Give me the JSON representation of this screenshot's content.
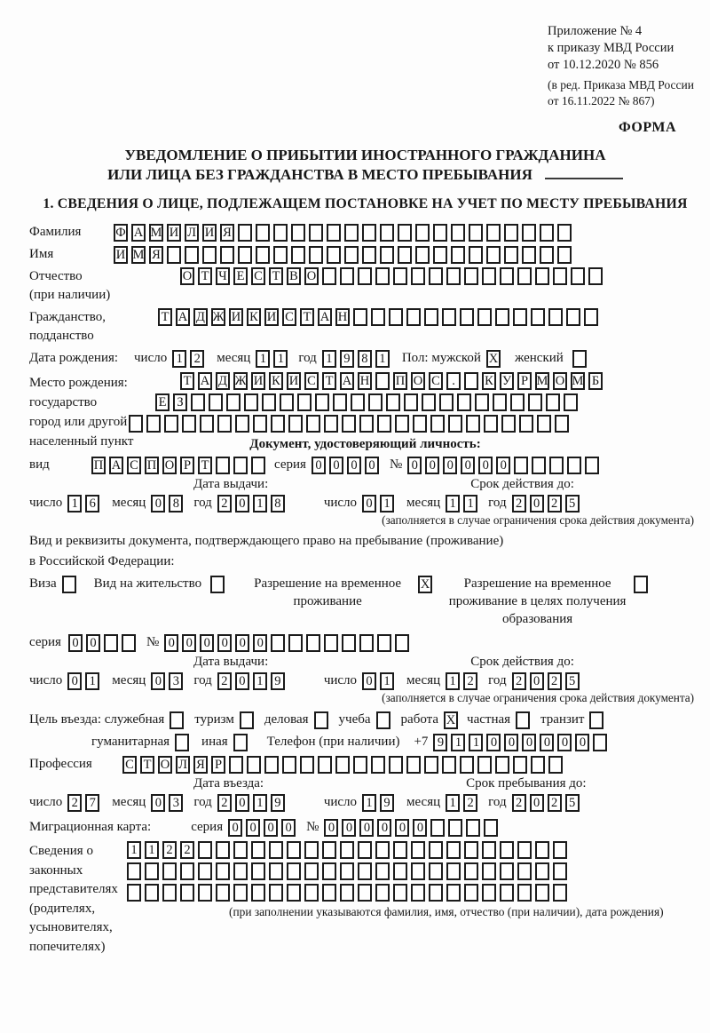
{
  "header": {
    "appendix_line1": "Приложение № 4",
    "appendix_line2": "к приказу МВД России",
    "appendix_line3": "от 10.12.2020 № 856",
    "edition_line1": "(в ред. Приказа МВД России",
    "edition_line2": "от 16.11.2022 № 867)",
    "form_label": "ФОРМА"
  },
  "title": {
    "line1": "УВЕДОМЛЕНИЕ О ПРИБЫТИИ ИНОСТРАННОГО ГРАЖДАНИНА",
    "line2": "ИЛИ ЛИЦА БЕЗ ГРАЖДАНСТВА В МЕСТО ПРЕБЫВАНИЯ"
  },
  "section1_heading": "1. СВЕДЕНИЯ О ЛИЦЕ, ПОДЛЕЖАЩЕМ ПОСТАНОВКЕ НА УЧЕТ ПО МЕСТУ ПРЕБЫВАНИЯ",
  "labels": {
    "surname": "Фамилия",
    "name": "Имя",
    "patronymic": "Отчество",
    "patronymic_note": "(при наличии)",
    "citizenship1": "Гражданство,",
    "citizenship2": "подданство",
    "birth_date": "Дата рождения:",
    "day": "число",
    "month": "месяц",
    "year": "год",
    "sex_male": "Пол: мужской",
    "sex_female": "женский",
    "birth_place": "Место рождения:",
    "state": "государство",
    "city1": "город или другой",
    "city2": "населенный пункт",
    "identity_doc_heading": "Документ, удостоверяющий личность:",
    "doc_type": "вид",
    "series": "серия",
    "number": "№",
    "issue_date": "Дата выдачи:",
    "valid_until": "Срок действия до:",
    "validity_note": "(заполняется в случае ограничения срока действия документа)",
    "residence_doc_line1": "Вид и реквизиты документа, подтверждающего право на пребывание (проживание)",
    "residence_doc_line2": "в Российской Федерации:",
    "visa": "Виза",
    "residence_permit": "Вид на жительство",
    "temp_residence": "Разрешение на временное проживание",
    "temp_residence_edu": "Разрешение на временное проживание в целях получения образования",
    "entry_purpose": "Цель въезда: служебная",
    "tourism": "туризм",
    "business": "деловая",
    "study": "учеба",
    "work": "работа",
    "private": "частная",
    "transit": "транзит",
    "humanitarian": "гуманитарная",
    "other": "иная",
    "phone": "Телефон (при наличии)",
    "phone_prefix": "+7",
    "profession": "Профессия",
    "entry_date": "Дата въезда:",
    "stay_until": "Срок пребывания до:",
    "migration_card": "Миграционная карта:",
    "guardians_l1": "Сведения о",
    "guardians_l2": "законных",
    "guardians_l3": "представителях",
    "guardians_l4": "(родителях,",
    "guardians_l5": "усыновителях,",
    "guardians_l6": "попечителях)",
    "guardians_note": "(при заполнении указываются фамилия, имя, отчество (при наличии), дата рождения)"
  },
  "boxes": {
    "surname": {
      "value": "ФАМИЛИЯ",
      "cells": 26
    },
    "name": {
      "value": "ИМЯ",
      "cells": 26
    },
    "patronymic": {
      "value": "ОТЧЕСТВО",
      "cells": 24
    },
    "citizenship": {
      "value": "ТАДЖИКИСТАН",
      "cells": 25
    },
    "birth_day": {
      "value": "12",
      "cells": 2
    },
    "birth_month": {
      "value": "11",
      "cells": 2
    },
    "birth_year": {
      "value": "1981",
      "cells": 4
    },
    "sex_male": {
      "value": "X",
      "cells": 1
    },
    "sex_female": {
      "value": "",
      "cells": 1
    },
    "birth_place_row1": {
      "value": "ТАДЖИКИСТАН ПОС. КУРМОМБ",
      "cells": 24
    },
    "birth_place_row2": {
      "value": "ЕЗ",
      "cells": 24
    },
    "birth_place_row3": {
      "value": "",
      "cells": 25
    },
    "doc_type": {
      "value": "ПАСПОРТ",
      "cells": 10
    },
    "doc_series": {
      "value": "0000",
      "cells": 4
    },
    "doc_number": {
      "value": "000000",
      "cells": 11
    },
    "doc_issue_day": {
      "value": "16",
      "cells": 2
    },
    "doc_issue_month": {
      "value": "08",
      "cells": 2
    },
    "doc_issue_year": {
      "value": "2018",
      "cells": 4
    },
    "doc_valid_day": {
      "value": "01",
      "cells": 2
    },
    "doc_valid_month": {
      "value": "11",
      "cells": 2
    },
    "doc_valid_year": {
      "value": "2025",
      "cells": 4
    },
    "visa_checkbox": {
      "value": "",
      "cells": 1
    },
    "residence_permit_checkbox": {
      "value": "",
      "cells": 1
    },
    "temp_residence_checkbox": {
      "value": "X",
      "cells": 1
    },
    "temp_residence_edu_checkbox": {
      "value": "",
      "cells": 1
    },
    "permit_series": {
      "value": "00",
      "cells": 4
    },
    "permit_number": {
      "value": "000000",
      "cells": 14
    },
    "permit_issue_day": {
      "value": "01",
      "cells": 2
    },
    "permit_issue_month": {
      "value": "03",
      "cells": 2
    },
    "permit_issue_year": {
      "value": "2019",
      "cells": 4
    },
    "permit_valid_day": {
      "value": "01",
      "cells": 2
    },
    "permit_valid_month": {
      "value": "12",
      "cells": 2
    },
    "permit_valid_year": {
      "value": "2025",
      "cells": 4
    },
    "purpose_official": {
      "value": "",
      "cells": 1
    },
    "purpose_tourism": {
      "value": "",
      "cells": 1
    },
    "purpose_business": {
      "value": "",
      "cells": 1
    },
    "purpose_study": {
      "value": "",
      "cells": 1
    },
    "purpose_work": {
      "value": "X",
      "cells": 1
    },
    "purpose_private": {
      "value": "",
      "cells": 1
    },
    "purpose_transit": {
      "value": "",
      "cells": 1
    },
    "purpose_humanitarian": {
      "value": "",
      "cells": 1
    },
    "purpose_other": {
      "value": "",
      "cells": 1
    },
    "phone_number": {
      "value": "911000000",
      "cells": 10
    },
    "profession": {
      "value": "СТОЛЯР",
      "cells": 25
    },
    "entry_day": {
      "value": "27",
      "cells": 2
    },
    "entry_month": {
      "value": "03",
      "cells": 2
    },
    "entry_year": {
      "value": "2019",
      "cells": 4
    },
    "stay_day": {
      "value": "19",
      "cells": 2
    },
    "stay_month": {
      "value": "12",
      "cells": 2
    },
    "stay_year": {
      "value": "2025",
      "cells": 4
    },
    "migration_series": {
      "value": "0000",
      "cells": 4
    },
    "migration_number": {
      "value": "000000",
      "cells": 10
    },
    "guardians_row1": {
      "value": "1122",
      "cells": 25
    },
    "guardians_row2": {
      "value": "",
      "cells": 25
    },
    "guardians_row3": {
      "value": "",
      "cells": 25
    }
  }
}
